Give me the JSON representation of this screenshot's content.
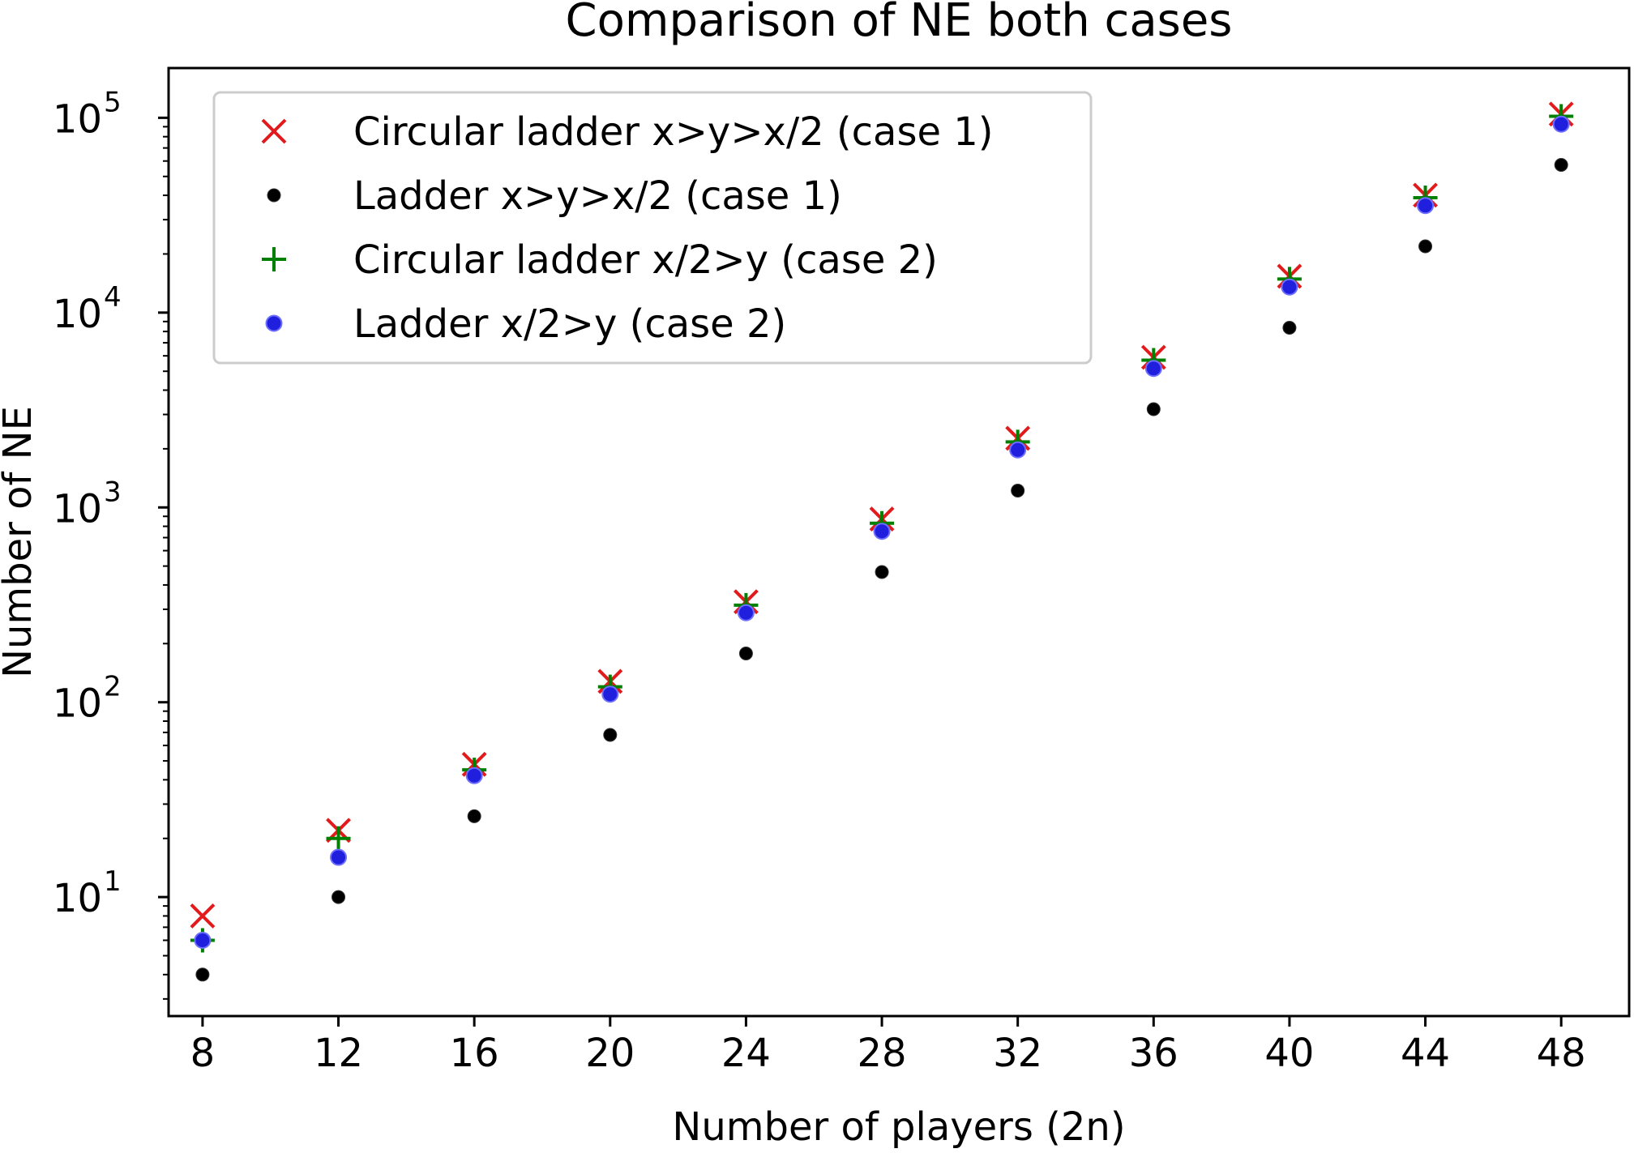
{
  "chart_data": {
    "type": "scatter",
    "title": "Comparison of NE both cases",
    "xlabel": "Number of players (2n)",
    "ylabel": "Number of NE",
    "x": [
      8,
      12,
      16,
      20,
      24,
      28,
      32,
      36,
      40,
      44,
      48
    ],
    "xlim": [
      7,
      50
    ],
    "ylim": [
      2.45,
      180000
    ],
    "yscale": "log",
    "xticks": [
      8,
      12,
      16,
      20,
      24,
      28,
      32,
      36,
      40,
      44,
      48
    ],
    "yticks": [
      {
        "value": 10,
        "base": "10",
        "exp": "1"
      },
      {
        "value": 100,
        "base": "10",
        "exp": "2"
      },
      {
        "value": 1000,
        "base": "10",
        "exp": "3"
      },
      {
        "value": 10000,
        "base": "10",
        "exp": "4"
      },
      {
        "value": 100000,
        "base": "10",
        "exp": "5"
      }
    ],
    "legend_position": "upper-left",
    "grid": false,
    "series": [
      {
        "name": "Circular ladder x>y>x/2 (case 1)",
        "marker": "x",
        "color": "#e31a1c",
        "values": [
          8,
          22,
          48,
          128,
          328,
          872,
          2264,
          5896,
          15368,
          40064,
          104448
        ]
      },
      {
        "name": "Ladder x>y>x/2 (case 1)",
        "marker": "circle-small",
        "color": "#000000",
        "values": [
          4,
          10,
          26,
          68,
          178,
          466,
          1220,
          3194,
          8362,
          21892,
          57314
        ]
      },
      {
        "name": "Circular ladder x/2>y (case 2)",
        "marker": "plus",
        "color": "#008000",
        "values": [
          6,
          20,
          45,
          120,
          315,
          830,
          2170,
          5700,
          14880,
          38900,
          101800
        ]
      },
      {
        "name": "Ladder x/2>y (case 2)",
        "marker": "circle",
        "color": "#1f1fdd",
        "values": [
          6,
          16,
          42,
          110,
          288,
          754,
          1974,
          5168,
          13530,
          35422,
          92736
        ]
      }
    ]
  }
}
